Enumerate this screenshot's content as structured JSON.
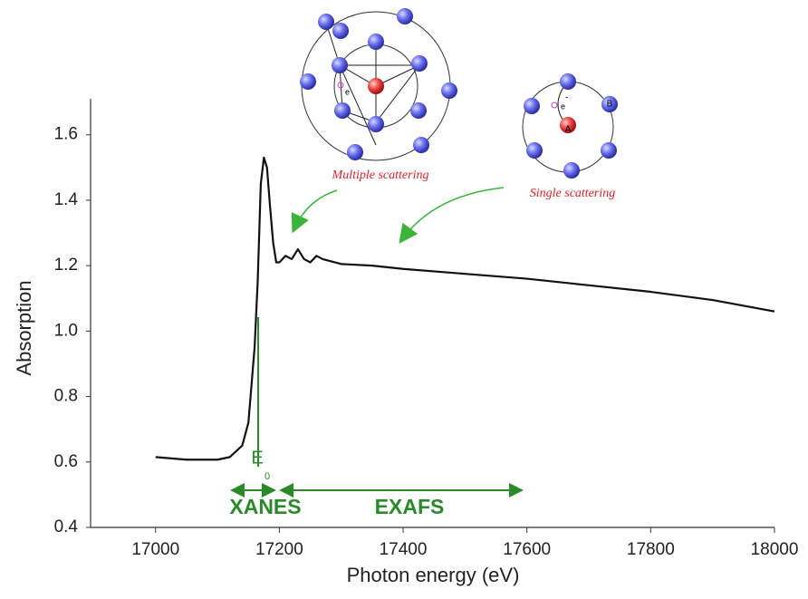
{
  "chart_data": {
    "type": "line",
    "x_label": "Photon energy (eV)",
    "y_label": "Absorption",
    "x": [
      17000,
      17050,
      17100,
      17120,
      17140,
      17150,
      17160,
      17165,
      17170,
      17175,
      17180,
      17185,
      17190,
      17195,
      17200,
      17210,
      17220,
      17230,
      17240,
      17250,
      17260,
      17270,
      17300,
      17350,
      17400,
      17500,
      17600,
      17700,
      17800,
      17900,
      18000
    ],
    "values": [
      0.615,
      0.607,
      0.607,
      0.615,
      0.65,
      0.72,
      0.95,
      1.15,
      1.45,
      1.53,
      1.5,
      1.38,
      1.27,
      1.21,
      1.21,
      1.23,
      1.22,
      1.25,
      1.22,
      1.21,
      1.23,
      1.22,
      1.205,
      1.2,
      1.19,
      1.175,
      1.16,
      1.14,
      1.12,
      1.095,
      1.06
    ],
    "color": "#111111",
    "xlim": [
      16895,
      18000
    ],
    "ylim": [
      0.4,
      1.71
    ],
    "xticks": [
      17000,
      17200,
      17400,
      17600,
      17800,
      18000
    ],
    "yticks": [
      0.4,
      0.6,
      0.8,
      {
        "value": 1,
        "label": "1.0"
      },
      1.2,
      1.4,
      1.6
    ],
    "annotations": {
      "edge": "E",
      "edge_sub": "0",
      "xanes": "XANES",
      "exafs": "EXAFS",
      "multiple": "Multiple scattering",
      "single": "Single scattering",
      "electron": "e",
      "electron2": "e",
      "charge": "-",
      "atom_a": "A",
      "atom_b": "B"
    }
  }
}
